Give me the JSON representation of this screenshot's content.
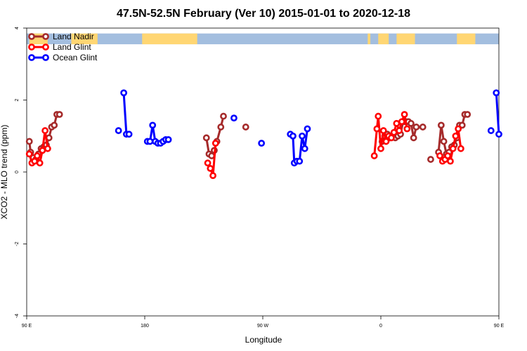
{
  "chart_data": {
    "type": "line",
    "title": "47.5N-52.5N February (Ver 10)   2015-01-01 to 2020-12-18",
    "xlabel": "Longitude",
    "ylabel": "XCO2 - MLO trend (ppm)",
    "xlim": [
      90,
      450
    ],
    "ylim": [
      -4,
      4
    ],
    "x_ticks": [
      {
        "value": 90,
        "label": "90 E"
      },
      {
        "value": 180,
        "label": "180"
      },
      {
        "value": 270,
        "label": "90 W"
      },
      {
        "value": 360,
        "label": "0"
      },
      {
        "value": 450,
        "label": "90 E"
      },
      {
        "value": 540,
        "label": "180"
      }
    ],
    "y_ticks": [
      {
        "value": -4,
        "label": "-4"
      },
      {
        "value": -2,
        "label": "-2"
      },
      {
        "value": 0,
        "label": "0"
      },
      {
        "value": 2,
        "label": "2"
      },
      {
        "value": 4,
        "label": "4"
      }
    ],
    "legend_position": "top-left",
    "series": [
      {
        "name": "Land Nadir",
        "color": "#a52a2a",
        "segments": [
          [
            [
              92,
              0.85
            ],
            [
              93,
              0.55
            ],
            [
              95,
              0.4
            ],
            [
              97,
              0.35
            ],
            [
              99,
              0.5
            ],
            [
              101,
              0.65
            ],
            [
              103,
              0.7
            ],
            [
              105,
              0.75
            ],
            [
              107,
              0.95
            ],
            [
              109,
              1.25
            ],
            [
              111,
              1.3
            ],
            [
              113,
              1.6
            ],
            [
              115,
              1.6
            ]
          ],
          [
            [
              227,
              0.95
            ],
            [
              229,
              0.5
            ],
            [
              231,
              0.45
            ],
            [
              233,
              0.6
            ],
            [
              235,
              0.85
            ],
            [
              238,
              1.25
            ],
            [
              240,
              1.55
            ]
          ],
          [
            [
              257,
              1.25
            ]
          ],
          [
            [
              361,
              0.85
            ],
            [
              363,
              1.0
            ],
            [
              365,
              1.05
            ],
            [
              367,
              0.95
            ],
            [
              369,
              1.0
            ],
            [
              371,
              0.95
            ],
            [
              373,
              1.0
            ],
            [
              375,
              1.05
            ],
            [
              377,
              1.4
            ],
            [
              379,
              1.4
            ],
            [
              381,
              1.4
            ],
            [
              383,
              1.35
            ],
            [
              385,
              0.95
            ],
            [
              387,
              1.25
            ],
            [
              392,
              1.25
            ]
          ],
          [
            [
              398,
              0.35
            ]
          ],
          [
            [
              404,
              0.55
            ],
            [
              406,
              1.3
            ],
            [
              408,
              0.85
            ],
            [
              410,
              0.5
            ],
            [
              412,
              0.55
            ],
            [
              414,
              0.7
            ],
            [
              416,
              0.75
            ],
            [
              418,
              0.95
            ],
            [
              420,
              1.3
            ],
            [
              422,
              1.3
            ],
            [
              424,
              1.6
            ],
            [
              426,
              1.6
            ]
          ]
        ]
      },
      {
        "name": "Land Glint",
        "color": "#ff0000",
        "segments": [
          [
            [
              92,
              0.5
            ],
            [
              94,
              0.25
            ],
            [
              96,
              0.3
            ],
            [
              98,
              0.45
            ],
            [
              100,
              0.25
            ],
            [
              102,
              0.6
            ],
            [
              104,
              1.15
            ],
            [
              106,
              0.65
            ]
          ],
          [
            [
              228,
              0.25
            ],
            [
              230,
              0.1
            ],
            [
              232,
              -0.1
            ],
            [
              234,
              0.8
            ]
          ],
          [
            [
              355,
              0.45
            ],
            [
              357,
              1.2
            ],
            [
              358,
              1.55
            ],
            [
              360,
              0.65
            ],
            [
              362,
              1.15
            ],
            [
              364,
              0.85
            ],
            [
              366,
              1.0
            ],
            [
              368,
              0.95
            ],
            [
              370,
              1.1
            ],
            [
              372,
              1.35
            ],
            [
              374,
              1.15
            ],
            [
              376,
              1.4
            ],
            [
              378,
              1.6
            ],
            [
              380,
              1.2
            ]
          ],
          [
            [
              405,
              0.45
            ],
            [
              407,
              0.3
            ],
            [
              409,
              0.35
            ],
            [
              411,
              0.45
            ],
            [
              413,
              0.3
            ],
            [
              415,
              0.65
            ],
            [
              417,
              1.0
            ],
            [
              419,
              1.2
            ],
            [
              421,
              0.65
            ]
          ]
        ]
      },
      {
        "name": "Ocean Glint",
        "color": "#0000ff",
        "segments": [
          [
            [
              160,
              1.15
            ]
          ],
          [
            [
              164,
              2.2
            ],
            [
              166,
              1.05
            ],
            [
              168,
              1.05
            ]
          ],
          [
            [
              182,
              0.85
            ],
            [
              184,
              0.85
            ],
            [
              186,
              1.3
            ],
            [
              188,
              0.85
            ],
            [
              190,
              0.8
            ],
            [
              192,
              0.8
            ],
            [
              194,
              0.85
            ],
            [
              196,
              0.9
            ],
            [
              198,
              0.9
            ]
          ],
          [
            [
              248,
              1.5
            ]
          ],
          [
            [
              269,
              0.8
            ]
          ],
          [
            [
              291,
              1.05
            ],
            [
              293,
              1.0
            ],
            [
              294,
              0.25
            ],
            [
              296,
              0.3
            ],
            [
              298,
              0.3
            ],
            [
              300,
              1.0
            ],
            [
              302,
              0.65
            ],
            [
              304,
              1.2
            ]
          ],
          [
            [
              444,
              1.15
            ]
          ],
          [
            [
              448,
              2.2
            ],
            [
              450,
              1.05
            ]
          ]
        ]
      }
    ],
    "band": {
      "ylim": [
        3.55,
        3.85
      ],
      "land_color": "#ffd673",
      "ocean_color": "#a3bedf",
      "land_intervals": [
        [
          92,
          106
        ],
        [
          124,
          144
        ],
        [
          178,
          220
        ],
        [
          350,
          352
        ],
        [
          358,
          366
        ],
        [
          372,
          386
        ],
        [
          418,
          432
        ]
      ]
    }
  }
}
